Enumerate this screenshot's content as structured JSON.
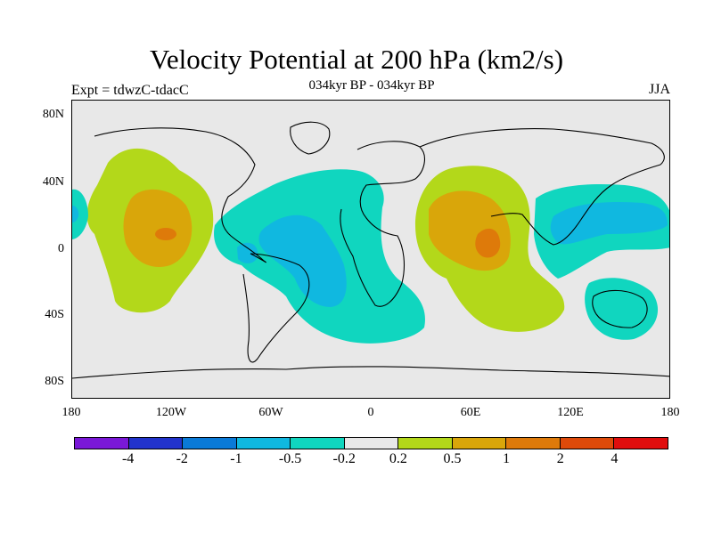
{
  "header": {
    "title": "Velocity Potential at 200 hPa (km2/s)",
    "subtitle": "034kyr BP - 034kyr BP",
    "left_label": "Expt = tdwzC-tdacC",
    "right_label": "JJA"
  },
  "map": {
    "lat_ticks": [
      "80N",
      "40N",
      "0",
      "40S",
      "80S"
    ],
    "lon_ticks": [
      "180",
      "120W",
      "60W",
      "0",
      "60E",
      "120E",
      "180"
    ],
    "background_color": "#e8e8e8"
  },
  "colorbar": {
    "colors": [
      "#7a18d8",
      "#2233cc",
      "#0a7ad8",
      "#10b8e0",
      "#10d6bf",
      "#e8e8e8",
      "#b3d81a",
      "#d9a60a",
      "#de7a0a",
      "#de4a0a",
      "#e00d0d"
    ],
    "labels": [
      "-4",
      "-2",
      "-1",
      "-0.5",
      "-0.2",
      "0.2",
      "0.5",
      "1",
      "2",
      "4"
    ]
  }
}
